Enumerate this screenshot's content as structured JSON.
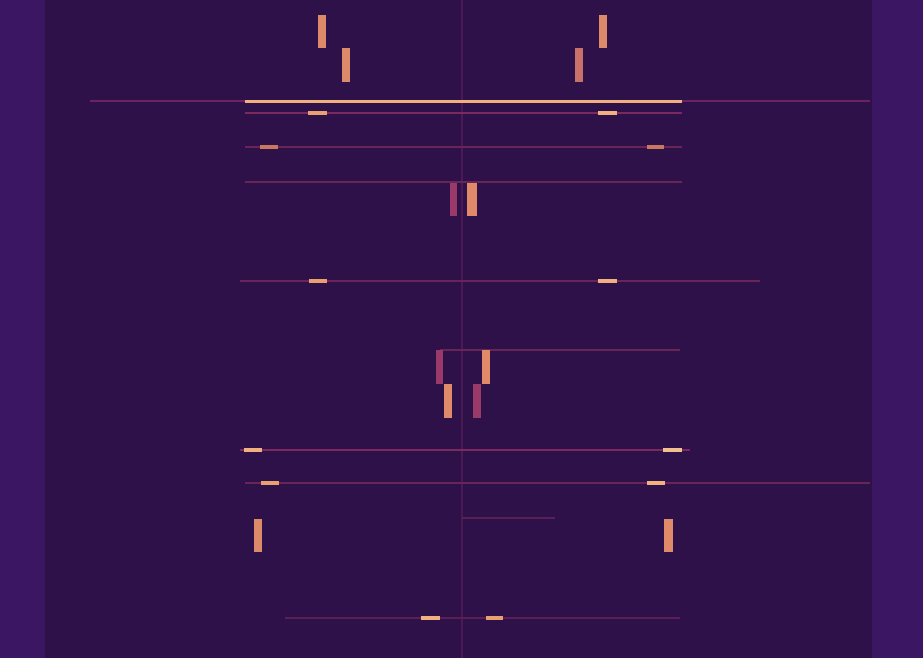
{
  "chart_data": {
    "type": "spectrogram",
    "tick_labels": false,
    "grid": false,
    "xlim": [
      0,
      923
    ],
    "ylim": [
      0,
      658
    ],
    "background": [
      {
        "x": [
          0,
          923
        ],
        "y": [
          0,
          658
        ],
        "color": "#3b1763"
      },
      {
        "x": [
          45,
          872
        ],
        "y": [
          0,
          658
        ],
        "color": "#2e1149"
      },
      {
        "x": [
          461,
          463
        ],
        "y": [
          0,
          658
        ],
        "color": "#4a1a55"
      }
    ],
    "lines": [
      {
        "x": [
          90,
          870
        ],
        "y": [
          100,
          102
        ],
        "color": "#6a2560"
      },
      {
        "x": [
          245,
          682
        ],
        "y": [
          100,
          103
        ],
        "color": "#f0b080"
      },
      {
        "x": [
          245,
          682
        ],
        "y": [
          112,
          114
        ],
        "color": "#7a2a5e"
      },
      {
        "x": [
          245,
          682
        ],
        "y": [
          146,
          148
        ],
        "color": "#6a2558"
      },
      {
        "x": [
          245,
          682
        ],
        "y": [
          181,
          183
        ],
        "color": "#6a2558"
      },
      {
        "x": [
          240,
          760
        ],
        "y": [
          280,
          282
        ],
        "color": "#6a2558"
      },
      {
        "x": [
          440,
          680
        ],
        "y": [
          349,
          351
        ],
        "color": "#6a2558"
      },
      {
        "x": [
          240,
          690
        ],
        "y": [
          449,
          451
        ],
        "color": "#7a2a5e"
      },
      {
        "x": [
          245,
          870
        ],
        "y": [
          482,
          484
        ],
        "color": "#6a2558"
      },
      {
        "x": [
          462,
          555
        ],
        "y": [
          517,
          519
        ],
        "color": "#5a2055"
      },
      {
        "x": [
          285,
          680
        ],
        "y": [
          617,
          619
        ],
        "color": "#5a2055"
      }
    ],
    "bursts": [
      {
        "x": [
          318,
          326
        ],
        "y": [
          15,
          48
        ],
        "color": "#dc8a6a"
      },
      {
        "x": [
          342,
          350
        ],
        "y": [
          48,
          82
        ],
        "color": "#dc8a6a"
      },
      {
        "x": [
          599,
          607
        ],
        "y": [
          15,
          48
        ],
        "color": "#dc8a6a"
      },
      {
        "x": [
          575,
          583
        ],
        "y": [
          48,
          82
        ],
        "color": "#c8706a"
      },
      {
        "x": [
          308,
          327
        ],
        "y": [
          111,
          115
        ],
        "color": "#e8a070"
      },
      {
        "x": [
          598,
          617
        ],
        "y": [
          111,
          115
        ],
        "color": "#f0b080"
      },
      {
        "x": [
          260,
          278
        ],
        "y": [
          145,
          149
        ],
        "color": "#c87860"
      },
      {
        "x": [
          647,
          664
        ],
        "y": [
          145,
          149
        ],
        "color": "#c87860"
      },
      {
        "x": [
          450,
          457
        ],
        "y": [
          183,
          216
        ],
        "color": "#9a3a6a"
      },
      {
        "x": [
          467,
          477
        ],
        "y": [
          183,
          216
        ],
        "color": "#e08a6a"
      },
      {
        "x": [
          309,
          327
        ],
        "y": [
          279,
          283
        ],
        "color": "#e8a070"
      },
      {
        "x": [
          598,
          617
        ],
        "y": [
          279,
          283
        ],
        "color": "#f0b080"
      },
      {
        "x": [
          436,
          443
        ],
        "y": [
          350,
          384
        ],
        "color": "#9a3a6a"
      },
      {
        "x": [
          482,
          490
        ],
        "y": [
          350,
          384
        ],
        "color": "#e08a6a"
      },
      {
        "x": [
          444,
          452
        ],
        "y": [
          384,
          418
        ],
        "color": "#e08a6a"
      },
      {
        "x": [
          473,
          481
        ],
        "y": [
          384,
          418
        ],
        "color": "#9a3a6a"
      },
      {
        "x": [
          244,
          262
        ],
        "y": [
          448,
          452
        ],
        "color": "#f0b080"
      },
      {
        "x": [
          663,
          682
        ],
        "y": [
          448,
          452
        ],
        "color": "#f0c090"
      },
      {
        "x": [
          261,
          279
        ],
        "y": [
          481,
          485
        ],
        "color": "#e8a070"
      },
      {
        "x": [
          647,
          665
        ],
        "y": [
          481,
          485
        ],
        "color": "#f0b080"
      },
      {
        "x": [
          254,
          262
        ],
        "y": [
          519,
          552
        ],
        "color": "#dc8a6a"
      },
      {
        "x": [
          664,
          673
        ],
        "y": [
          519,
          552
        ],
        "color": "#e08a6a"
      },
      {
        "x": [
          421,
          440
        ],
        "y": [
          616,
          620
        ],
        "color": "#f0b080"
      },
      {
        "x": [
          486,
          503
        ],
        "y": [
          616,
          620
        ],
        "color": "#e8a070"
      }
    ]
  }
}
